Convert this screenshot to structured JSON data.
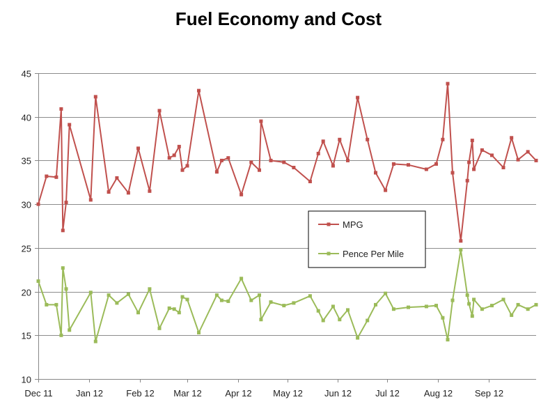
{
  "chart_data": {
    "type": "line",
    "title": "Fuel Economy and Cost",
    "xlabel": "",
    "ylabel": "",
    "ylim": [
      10,
      45
    ],
    "yticks": [
      10,
      15,
      20,
      25,
      30,
      35,
      40,
      45
    ],
    "grid": true,
    "legend_position": "center-right",
    "x_axis": {
      "start_date": "2011-12-01",
      "end_date": "2012-09-30",
      "tick_labels": [
        {
          "label": "Dec 11",
          "date": "2011-12-01"
        },
        {
          "label": "Jan 12",
          "date": "2012-01-01"
        },
        {
          "label": "Feb 12",
          "date": "2012-02-01"
        },
        {
          "label": "Mar 12",
          "date": "2012-03-01"
        },
        {
          "label": "Apr 12",
          "date": "2012-04-01"
        },
        {
          "label": "May 12",
          "date": "2012-05-01"
        },
        {
          "label": "Jun 12",
          "date": "2012-06-01"
        },
        {
          "label": "Jul 12",
          "date": "2012-07-01"
        },
        {
          "label": "Aug 12",
          "date": "2012-08-01"
        },
        {
          "label": "Sep 12",
          "date": "2012-09-01"
        }
      ]
    },
    "x": [
      "2011-12-01",
      "2011-12-06",
      "2011-12-12",
      "2011-12-15",
      "2011-12-16",
      "2011-12-18",
      "2011-12-20",
      "2012-01-02",
      "2012-01-05",
      "2012-01-13",
      "2012-01-18",
      "2012-01-25",
      "2012-01-31",
      "2012-02-07",
      "2012-02-13",
      "2012-02-19",
      "2012-02-22",
      "2012-02-25",
      "2012-02-27",
      "2012-03-01",
      "2012-03-08",
      "2012-03-19",
      "2012-03-22",
      "2012-03-26",
      "2012-04-03",
      "2012-04-09",
      "2012-04-14",
      "2012-04-15",
      "2012-04-21",
      "2012-04-29",
      "2012-05-05",
      "2012-05-15",
      "2012-05-20",
      "2012-05-23",
      "2012-05-29",
      "2012-06-02",
      "2012-06-07",
      "2012-06-13",
      "2012-06-19",
      "2012-06-24",
      "2012-06-30",
      "2012-07-05",
      "2012-07-14",
      "2012-07-25",
      "2012-07-31",
      "2012-08-04",
      "2012-08-07",
      "2012-08-10",
      "2012-08-15",
      "2012-08-19",
      "2012-08-20",
      "2012-08-22",
      "2012-08-23",
      "2012-08-28",
      "2012-09-03",
      "2012-09-10",
      "2012-09-15",
      "2012-09-19",
      "2012-09-25",
      "2012-09-30"
    ],
    "series": [
      {
        "name": "MPG",
        "color": "#c0504d",
        "values": [
          30.0,
          33.2,
          33.1,
          40.9,
          27.0,
          30.2,
          39.1,
          30.5,
          42.3,
          31.4,
          33.0,
          31.3,
          36.4,
          31.5,
          40.7,
          35.3,
          35.6,
          36.6,
          33.9,
          34.4,
          43.0,
          33.7,
          35.0,
          35.3,
          31.1,
          34.8,
          33.9,
          39.5,
          35.0,
          34.8,
          34.2,
          32.6,
          35.8,
          37.2,
          34.4,
          37.4,
          35.0,
          42.2,
          37.4,
          33.6,
          31.6,
          34.6,
          34.5,
          34.0,
          34.6,
          37.4,
          43.8,
          33.6,
          25.8,
          32.7,
          34.8,
          37.3,
          34.0,
          36.2,
          35.6,
          34.2,
          37.6,
          35.1,
          36.0,
          35.0
        ]
      },
      {
        "name": "Pence Per Mile",
        "color": "#9bbb59",
        "values": [
          21.2,
          18.5,
          18.5,
          15.0,
          22.7,
          20.3,
          15.6,
          19.9,
          14.3,
          19.6,
          18.7,
          19.7,
          17.6,
          20.3,
          15.8,
          18.1,
          18.0,
          17.6,
          19.4,
          19.1,
          15.3,
          19.6,
          19.0,
          18.9,
          21.5,
          19.0,
          19.6,
          16.8,
          18.8,
          18.4,
          18.7,
          19.5,
          17.8,
          16.7,
          18.3,
          16.8,
          17.9,
          14.7,
          16.7,
          18.5,
          19.8,
          18.0,
          18.2,
          18.3,
          18.4,
          17.0,
          14.5,
          19.0,
          24.8,
          19.6,
          18.6,
          17.2,
          19.1,
          18.0,
          18.4,
          19.1,
          17.3,
          18.5,
          18.0,
          18.5
        ]
      }
    ]
  }
}
